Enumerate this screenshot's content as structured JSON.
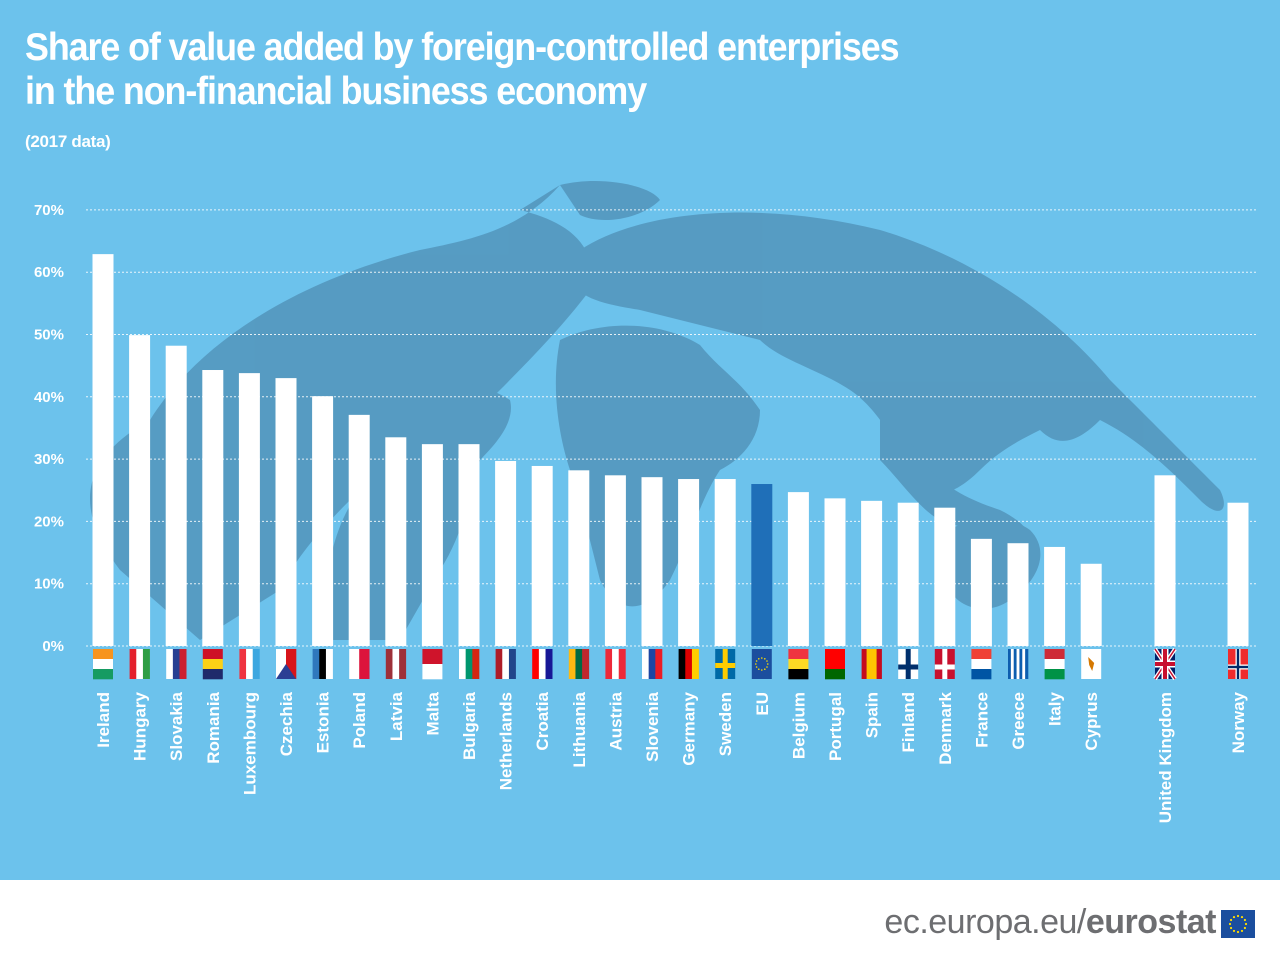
{
  "header": {
    "title_line1": "Share of value added by foreign-controlled enterprises",
    "title_line2": "in the non-financial business economy",
    "subtitle": "(2017 data)"
  },
  "footer": {
    "url_prefix": "ec.europa.eu/",
    "url_brand": "eurostat",
    "logo": "eu-flag-icon"
  },
  "colors": {
    "background": "#6cc2ec",
    "bar": "#ffffff",
    "bar_highlight": "#1f6fb8",
    "globe": "#4f8fb5"
  },
  "chart_data": {
    "type": "bar",
    "title": "Share of value added by foreign-controlled enterprises in the non-financial business economy",
    "subtitle": "(2017 data)",
    "xlabel": "",
    "ylabel": "",
    "ylim": [
      0,
      70
    ],
    "yticks": [
      0,
      10,
      20,
      30,
      40,
      50,
      60,
      70
    ],
    "ytick_labels": [
      "0%",
      "10%",
      "20%",
      "30%",
      "40%",
      "50%",
      "60%",
      "70%"
    ],
    "grid": true,
    "highlight": "EU",
    "categories": [
      "Ireland",
      "Hungary",
      "Slovakia",
      "Romania",
      "Luxembourg",
      "Czechia",
      "Estonia",
      "Poland",
      "Latvia",
      "Malta",
      "Bulgaria",
      "Netherlands",
      "Croatia",
      "Lithuania",
      "Austria",
      "Slovenia",
      "Germany",
      "Sweden",
      "EU",
      "Belgium",
      "Portugal",
      "Spain",
      "Finland",
      "Denmark",
      "France",
      "Greece",
      "Italy",
      "Cyprus",
      "United Kingdom",
      "Norway"
    ],
    "values": [
      62.9,
      49.9,
      48.2,
      44.3,
      43.8,
      43.0,
      40.1,
      37.1,
      33.5,
      32.4,
      32.4,
      29.7,
      28.9,
      28.2,
      27.4,
      27.1,
      26.8,
      26.8,
      26.0,
      24.7,
      23.7,
      23.3,
      23.0,
      22.2,
      17.2,
      16.5,
      15.9,
      13.2,
      27.4,
      23.0
    ],
    "flags": [
      "ireland-flag-icon",
      "hungary-flag-icon",
      "slovakia-flag-icon",
      "romania-flag-icon",
      "luxembourg-flag-icon",
      "czechia-flag-icon",
      "estonia-flag-icon",
      "poland-flag-icon",
      "latvia-flag-icon",
      "malta-flag-icon",
      "bulgaria-flag-icon",
      "netherlands-flag-icon",
      "croatia-flag-icon",
      "lithuania-flag-icon",
      "austria-flag-icon",
      "slovenia-flag-icon",
      "germany-flag-icon",
      "sweden-flag-icon",
      "eu-flag-icon",
      "belgium-flag-icon",
      "portugal-flag-icon",
      "spain-flag-icon",
      "finland-flag-icon",
      "denmark-flag-icon",
      "france-flag-icon",
      "greece-flag-icon",
      "italy-flag-icon",
      "cyprus-flag-icon",
      "united-kingdom-flag-icon",
      "norway-flag-icon"
    ]
  }
}
